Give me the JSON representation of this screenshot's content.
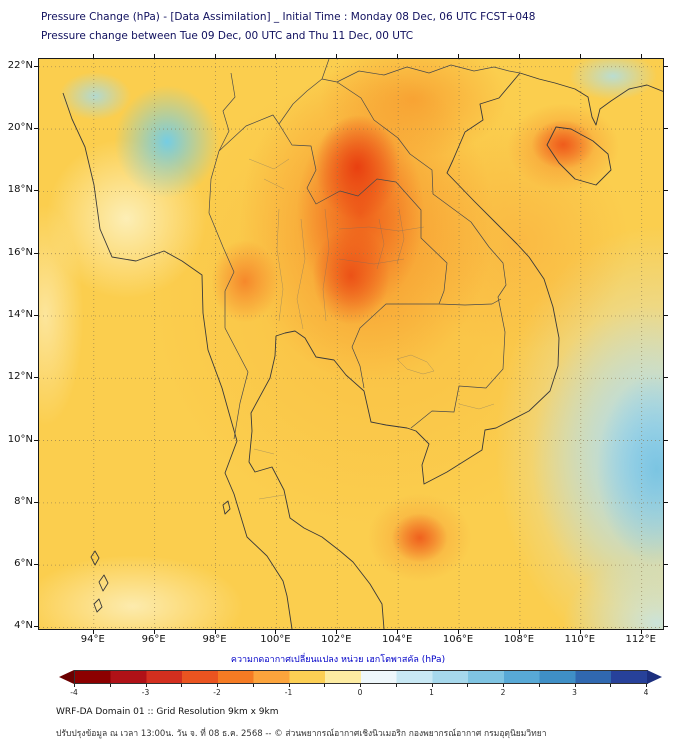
{
  "header": {
    "line1": "Pressure Change (hPa) - [Data Assimilation] _ Initial Time : Monday 08 Dec, 06 UTC FCST+048",
    "line2": "Pressure change between Tue 09 Dec, 00 UTC and Thu 11 Dec, 00 UTC"
  },
  "map": {
    "x_ticks": [
      {
        "value": 94,
        "label": "94°E"
      },
      {
        "value": 96,
        "label": "96°E"
      },
      {
        "value": 98,
        "label": "98°E"
      },
      {
        "value": 100,
        "label": "100°E"
      },
      {
        "value": 102,
        "label": "102°E"
      },
      {
        "value": 104,
        "label": "104°E"
      },
      {
        "value": 106,
        "label": "106°E"
      },
      {
        "value": 108,
        "label": "108°E"
      },
      {
        "value": 110,
        "label": "110°E"
      },
      {
        "value": 112,
        "label": "112°E"
      }
    ],
    "y_ticks": [
      {
        "value": 22,
        "label": "22°N"
      },
      {
        "value": 20,
        "label": "20°N"
      },
      {
        "value": 18,
        "label": "18°N"
      },
      {
        "value": 16,
        "label": "16°N"
      },
      {
        "value": 14,
        "label": "14°N"
      },
      {
        "value": 12,
        "label": "12°N"
      },
      {
        "value": 10,
        "label": "10°N"
      },
      {
        "value": 8,
        "label": "8°N"
      },
      {
        "value": 6,
        "label": "6°N"
      },
      {
        "value": 4,
        "label": "4°N"
      }
    ]
  },
  "colorbar": {
    "label": "ความกดอากาศเปลี่ยนแปลง หน่วย เฮกโตพาสคัล (hPa)",
    "min": -4,
    "max": 4,
    "minor_step": 0.5,
    "tick_labels": [
      "-4",
      "-3",
      "-2",
      "-1",
      "0",
      "1",
      "2",
      "3",
      "4"
    ],
    "segment_colors": [
      "#8c0000",
      "#b01117",
      "#d32f1f",
      "#ea5420",
      "#f57b23",
      "#fca43c",
      "#fccf54",
      "#fdeca2",
      "#eef7fb",
      "#c8e8f4",
      "#a6d8ec",
      "#7fc4e2",
      "#58a9d6",
      "#3f8fc6",
      "#3068b0",
      "#27419a"
    ],
    "left_arrow_color": "#6b0000",
    "right_arrow_color": "#1c2f7e"
  },
  "footer": {
    "line1": "WRF-DA Domain 01 :: Grid Resolution 9km x 9km",
    "line2": "ปรับปรุงข้อมูล ณ เวลา 13:00น. วัน จ. ที่ 08 ธ.ค. 2568 -- © ส่วนพยากรณ์อากาศเชิงนิวเมอริก กองพยากรณ์อากาศ กรมอุตุนิยมวิทยา"
  }
}
